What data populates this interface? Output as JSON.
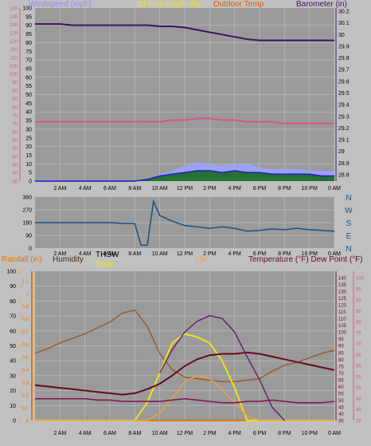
{
  "header_top": {
    "windspeed_label": "Windspeed (mph)",
    "graph_title": "24 hour graph day",
    "outdoor_temp_label": "Outdoor Temp",
    "barometer_label": "Barometer (in)"
  },
  "header_bottom": {
    "rainfall_label": "Rainfall (in)",
    "humidity_label": "Humidity",
    "thsw_label": "THSW",
    "solar_label": "Solar",
    "uv_label": "UV",
    "temp_dew_label": "Temperature (°F) Dew Point (°F)"
  },
  "x_ticks": [
    "2 AM",
    "4 AM",
    "6 AM",
    "8 AM",
    "10 AM",
    "12 PM",
    "2 PM",
    "4 PM",
    "6 PM",
    "8 PM",
    "10 PM",
    "0 AM"
  ],
  "colors": {
    "background": "#c0c0c0",
    "plot_bg": "#9a9a9a",
    "windspeed": "#9ea2ff",
    "gust": "#1e1ec8",
    "outdoor_temp": "#e0508c",
    "barometer": "#3c1460",
    "wind_dir": "#1a4f88",
    "solar": "#f0e020",
    "uv": "#f0a040",
    "humidity": "#9a5c2c",
    "temperature": "#6a0a1e",
    "rainfall": "#e07800",
    "thsw": "#6a2070",
    "dewpoint": "#801050",
    "green_wind": "#0f6a0f"
  },
  "axes_top": {
    "windspeed_ticks": [
      "0",
      "5",
      "10",
      "15",
      "20",
      "25",
      "30",
      "35",
      "40",
      "45",
      "50",
      "55",
      "60",
      "65",
      "70",
      "75",
      "80",
      "85",
      "90",
      "95",
      "100"
    ],
    "temp_ticks": [
      "35",
      "40",
      "45",
      "50",
      "55",
      "60",
      "65",
      "70",
      "75",
      "80",
      "85",
      "90",
      "95",
      "100",
      "105",
      "110",
      "115",
      "120",
      "125",
      "130",
      "135",
      "140"
    ],
    "baro_ticks": [
      "28.8",
      "28.9",
      "29",
      "29.1",
      "29.2",
      "29.3",
      "29.4",
      "29.5",
      "29.6",
      "29.7",
      "29.8",
      "29.9",
      "30",
      "30.1",
      "30.2"
    ]
  },
  "axes_dir": {
    "deg_ticks": [
      "360",
      "270",
      "180",
      "90",
      "0"
    ],
    "compass": [
      "N",
      "W",
      "S",
      "E",
      "N"
    ]
  },
  "axes_bottom": {
    "left_ticks": [
      "100",
      "90",
      "80",
      "70",
      "60",
      "50",
      "40",
      "30",
      "20",
      "10",
      "0"
    ],
    "rain_ticks": [
      "1.1",
      "1",
      "0.9",
      "0.8",
      "0.7",
      "0.6",
      "0.5",
      "0.4",
      "0.3",
      "0.2",
      "0.1",
      "0"
    ],
    "uv_ticks": [
      "10",
      "9",
      "8",
      "7",
      "6",
      "5",
      "4",
      "3",
      "2",
      "1",
      "0"
    ],
    "temp_right_ticks": [
      "140",
      "135",
      "130",
      "125",
      "120",
      "115",
      "110",
      "105",
      "100",
      "95",
      "90",
      "85",
      "80",
      "75",
      "70",
      "65",
      "60",
      "55",
      "50",
      "45",
      "40",
      "35"
    ],
    "temp_right2_ticks": [
      "100",
      "95",
      "90",
      "85",
      "80",
      "75",
      "70",
      "65",
      "60",
      "55",
      "50",
      "45",
      "40",
      "35"
    ]
  },
  "chart_data": [
    {
      "type": "line",
      "panel": "top",
      "x": [
        0,
        1,
        2,
        3,
        4,
        5,
        6,
        7,
        8,
        9,
        10,
        11,
        12,
        13,
        14,
        15,
        16,
        17,
        18,
        19,
        20,
        21,
        22,
        23,
        24
      ],
      "series": [
        {
          "name": "Barometer (in)",
          "values": [
            30.09,
            30.09,
            30.09,
            30.08,
            30.08,
            30.08,
            30.08,
            30.08,
            30.08,
            30.08,
            30.07,
            30.07,
            30.06,
            30.04,
            30.02,
            30.0,
            29.98,
            29.96,
            29.95,
            29.95,
            29.95,
            29.95,
            29.95,
            29.95,
            29.95
          ]
        },
        {
          "name": "Outdoor Temp",
          "values": [
            71,
            71,
            71,
            71,
            71,
            71,
            71,
            71,
            71,
            71,
            71,
            72,
            72,
            73,
            73,
            72,
            72,
            71,
            71,
            71,
            70,
            70,
            70,
            70,
            70
          ]
        },
        {
          "name": "Windspeed (mph)",
          "values": [
            0,
            1,
            0,
            0,
            0,
            0,
            0,
            0,
            0,
            0,
            4,
            6,
            9,
            11,
            10,
            9,
            10,
            10,
            8,
            7,
            7,
            7,
            6,
            6,
            6
          ]
        },
        {
          "name": "Gust",
          "values": [
            0,
            0,
            0,
            0,
            0,
            0,
            0,
            0,
            0,
            1,
            3,
            4,
            5,
            6,
            6,
            5,
            6,
            5,
            5,
            4,
            4,
            4,
            4,
            3,
            3
          ]
        }
      ]
    },
    {
      "type": "line",
      "panel": "wind-direction",
      "x": [
        0,
        1,
        2,
        3,
        4,
        5,
        6,
        7,
        8,
        8.5,
        9,
        9.5,
        10,
        11,
        12,
        13,
        14,
        15,
        16,
        17,
        18,
        19,
        20,
        21,
        22,
        23,
        24
      ],
      "series": [
        {
          "name": "Wind direction",
          "values": [
            180,
            180,
            180,
            180,
            180,
            180,
            180,
            175,
            172,
            20,
            20,
            330,
            230,
            190,
            160,
            150,
            140,
            150,
            140,
            120,
            125,
            135,
            130,
            140,
            130,
            125,
            120
          ]
        }
      ]
    },
    {
      "type": "line",
      "panel": "bottom",
      "x": [
        0,
        1,
        2,
        3,
        4,
        5,
        6,
        7,
        8,
        9,
        10,
        11,
        12,
        13,
        14,
        15,
        16,
        17,
        18,
        19,
        20,
        21,
        22,
        23,
        24
      ],
      "series": [
        {
          "name": "Humidity",
          "values": [
            45,
            48,
            52,
            55,
            58,
            62,
            66,
            72,
            74,
            63,
            45,
            34,
            29,
            28,
            27,
            26,
            26,
            27,
            28,
            33,
            37,
            39,
            42,
            45,
            47
          ]
        },
        {
          "name": "Solar",
          "values": [
            0,
            0,
            0,
            0,
            0,
            0,
            0,
            0,
            0,
            12,
            32,
            52,
            58,
            56,
            52,
            40,
            22,
            0,
            0,
            0,
            0,
            0,
            0,
            0,
            0
          ]
        },
        {
          "name": "UV",
          "values": [
            0,
            0,
            0,
            0,
            0,
            0,
            0,
            0,
            0,
            0,
            0.5,
            1.5,
            2.6,
            3.0,
            2.8,
            2.1,
            1.2,
            0.3,
            0,
            0,
            0,
            0,
            0,
            0,
            0
          ]
        },
        {
          "name": "Temperature (°F)",
          "values": [
            61,
            60,
            59,
            58,
            57,
            56,
            55,
            54,
            55,
            58,
            62,
            68,
            75,
            80,
            83,
            84,
            84,
            85,
            84,
            82,
            80,
            78,
            76,
            74,
            72
          ]
        },
        {
          "name": "Dew Point (°F)",
          "values": [
            51,
            51,
            51,
            51,
            51,
            50,
            50,
            49,
            49,
            49,
            49,
            50,
            51,
            50,
            49,
            48,
            48,
            49,
            49,
            50,
            49,
            48,
            48,
            48,
            49
          ]
        },
        {
          "name": "THSW",
          "values": [
            null,
            null,
            null,
            null,
            null,
            null,
            null,
            null,
            null,
            null,
            70,
            87,
            100,
            108,
            112,
            110,
            100,
            82,
            65,
            45,
            35,
            null,
            null,
            null,
            null
          ]
        },
        {
          "name": "Rainfall (in)",
          "values": [
            0,
            0,
            0,
            0,
            0,
            0,
            0,
            0,
            0,
            0,
            0,
            0,
            0,
            0,
            0,
            0,
            0,
            0,
            0,
            0,
            0,
            0,
            0,
            0,
            0
          ]
        }
      ]
    }
  ]
}
